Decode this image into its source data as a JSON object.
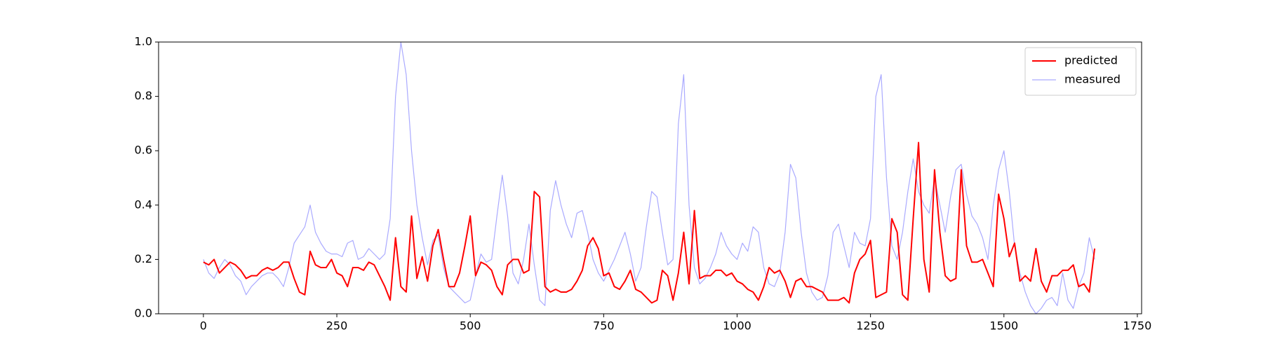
{
  "chart_data": {
    "type": "line",
    "x": [
      0,
      10,
      20,
      30,
      40,
      50,
      60,
      70,
      80,
      90,
      100,
      110,
      120,
      130,
      140,
      150,
      160,
      170,
      180,
      190,
      200,
      210,
      220,
      230,
      240,
      250,
      260,
      270,
      280,
      290,
      300,
      310,
      320,
      330,
      340,
      350,
      360,
      370,
      380,
      390,
      400,
      410,
      420,
      430,
      440,
      450,
      460,
      470,
      480,
      490,
      500,
      510,
      520,
      530,
      540,
      550,
      560,
      570,
      580,
      590,
      600,
      610,
      620,
      630,
      640,
      650,
      660,
      670,
      680,
      690,
      700,
      710,
      720,
      730,
      740,
      750,
      760,
      770,
      780,
      790,
      800,
      810,
      820,
      830,
      840,
      850,
      860,
      870,
      880,
      890,
      900,
      910,
      920,
      930,
      940,
      950,
      960,
      970,
      980,
      990,
      1000,
      1010,
      1020,
      1030,
      1040,
      1050,
      1060,
      1070,
      1080,
      1090,
      1100,
      1110,
      1120,
      1130,
      1140,
      1150,
      1160,
      1170,
      1180,
      1190,
      1200,
      1210,
      1220,
      1230,
      1240,
      1250,
      1260,
      1270,
      1280,
      1290,
      1300,
      1310,
      1320,
      1330,
      1340,
      1350,
      1360,
      1370,
      1380,
      1390,
      1400,
      1410,
      1420,
      1430,
      1440,
      1450,
      1460,
      1470,
      1480,
      1490,
      1500,
      1510,
      1520,
      1530,
      1540,
      1550,
      1560,
      1570,
      1580,
      1590,
      1600,
      1610,
      1620,
      1630,
      1640,
      1650,
      1660,
      1670
    ],
    "series": [
      {
        "name": "predicted",
        "color": "#ff0000",
        "values": [
          0.19,
          0.18,
          0.2,
          0.15,
          0.17,
          0.19,
          0.18,
          0.16,
          0.13,
          0.14,
          0.14,
          0.16,
          0.17,
          0.16,
          0.17,
          0.19,
          0.19,
          0.13,
          0.08,
          0.07,
          0.23,
          0.18,
          0.17,
          0.17,
          0.2,
          0.15,
          0.14,
          0.1,
          0.17,
          0.17,
          0.16,
          0.19,
          0.18,
          0.14,
          0.1,
          0.05,
          0.28,
          0.1,
          0.08,
          0.36,
          0.13,
          0.21,
          0.12,
          0.25,
          0.31,
          0.2,
          0.1,
          0.1,
          0.15,
          0.25,
          0.36,
          0.14,
          0.19,
          0.18,
          0.16,
          0.1,
          0.07,
          0.18,
          0.2,
          0.2,
          0.15,
          0.16,
          0.45,
          0.43,
          0.1,
          0.08,
          0.09,
          0.08,
          0.08,
          0.09,
          0.12,
          0.16,
          0.25,
          0.28,
          0.24,
          0.14,
          0.15,
          0.1,
          0.09,
          0.12,
          0.16,
          0.09,
          0.08,
          0.06,
          0.04,
          0.05,
          0.16,
          0.14,
          0.05,
          0.15,
          0.3,
          0.11,
          0.38,
          0.13,
          0.14,
          0.14,
          0.16,
          0.16,
          0.14,
          0.15,
          0.12,
          0.11,
          0.09,
          0.08,
          0.05,
          0.1,
          0.17,
          0.15,
          0.16,
          0.12,
          0.06,
          0.12,
          0.13,
          0.1,
          0.1,
          0.09,
          0.08,
          0.05,
          0.05,
          0.05,
          0.06,
          0.04,
          0.15,
          0.2,
          0.22,
          0.27,
          0.06,
          0.07,
          0.08,
          0.35,
          0.3,
          0.07,
          0.05,
          0.35,
          0.63,
          0.2,
          0.08,
          0.53,
          0.3,
          0.14,
          0.12,
          0.13,
          0.53,
          0.25,
          0.19,
          0.19,
          0.2,
          0.15,
          0.1,
          0.44,
          0.35,
          0.21,
          0.26,
          0.12,
          0.14,
          0.12,
          0.24,
          0.12,
          0.08,
          0.14,
          0.14,
          0.16,
          0.16,
          0.18,
          0.1,
          0.11,
          0.08,
          0.24
        ]
      },
      {
        "name": "measured",
        "color": "#aaaaff",
        "values": [
          0.2,
          0.15,
          0.13,
          0.17,
          0.2,
          0.18,
          0.14,
          0.12,
          0.07,
          0.1,
          0.12,
          0.14,
          0.15,
          0.15,
          0.13,
          0.1,
          0.17,
          0.26,
          0.29,
          0.32,
          0.4,
          0.3,
          0.26,
          0.23,
          0.22,
          0.22,
          0.21,
          0.26,
          0.27,
          0.2,
          0.21,
          0.24,
          0.22,
          0.2,
          0.22,
          0.35,
          0.8,
          1.0,
          0.88,
          0.6,
          0.4,
          0.28,
          0.18,
          0.27,
          0.29,
          0.17,
          0.1,
          0.08,
          0.06,
          0.04,
          0.05,
          0.14,
          0.22,
          0.19,
          0.2,
          0.36,
          0.51,
          0.36,
          0.15,
          0.11,
          0.2,
          0.33,
          0.18,
          0.05,
          0.03,
          0.38,
          0.49,
          0.4,
          0.33,
          0.28,
          0.37,
          0.38,
          0.3,
          0.2,
          0.15,
          0.12,
          0.16,
          0.2,
          0.25,
          0.3,
          0.22,
          0.12,
          0.17,
          0.32,
          0.45,
          0.43,
          0.3,
          0.18,
          0.2,
          0.7,
          0.88,
          0.4,
          0.17,
          0.11,
          0.13,
          0.17,
          0.22,
          0.3,
          0.25,
          0.22,
          0.2,
          0.26,
          0.23,
          0.32,
          0.3,
          0.17,
          0.11,
          0.1,
          0.15,
          0.3,
          0.55,
          0.5,
          0.3,
          0.15,
          0.08,
          0.05,
          0.06,
          0.14,
          0.3,
          0.33,
          0.25,
          0.17,
          0.3,
          0.26,
          0.25,
          0.35,
          0.8,
          0.88,
          0.5,
          0.25,
          0.2,
          0.3,
          0.45,
          0.57,
          0.45,
          0.4,
          0.37,
          0.5,
          0.4,
          0.3,
          0.43,
          0.53,
          0.55,
          0.44,
          0.36,
          0.33,
          0.28,
          0.2,
          0.4,
          0.53,
          0.6,
          0.45,
          0.25,
          0.15,
          0.08,
          0.03,
          0.0,
          0.02,
          0.05,
          0.06,
          0.03,
          0.15,
          0.05,
          0.02,
          0.1,
          0.15,
          0.28,
          0.2
        ]
      }
    ],
    "xlim": [
      -84,
      1758
    ],
    "xticks": [
      0,
      250,
      500,
      750,
      1000,
      1250,
      1500,
      1750
    ],
    "ylim": [
      0,
      1
    ],
    "yticks": [
      {
        "value": 0,
        "label": "0.0"
      },
      {
        "value": 0.2,
        "label": "0.2"
      },
      {
        "value": 0.4,
        "label": "0.4"
      },
      {
        "value": 0.6,
        "label": "0.6"
      },
      {
        "value": 0.8,
        "label": "0.8"
      },
      {
        "value": 1,
        "label": "1.0"
      }
    ],
    "legend": "upper right"
  }
}
